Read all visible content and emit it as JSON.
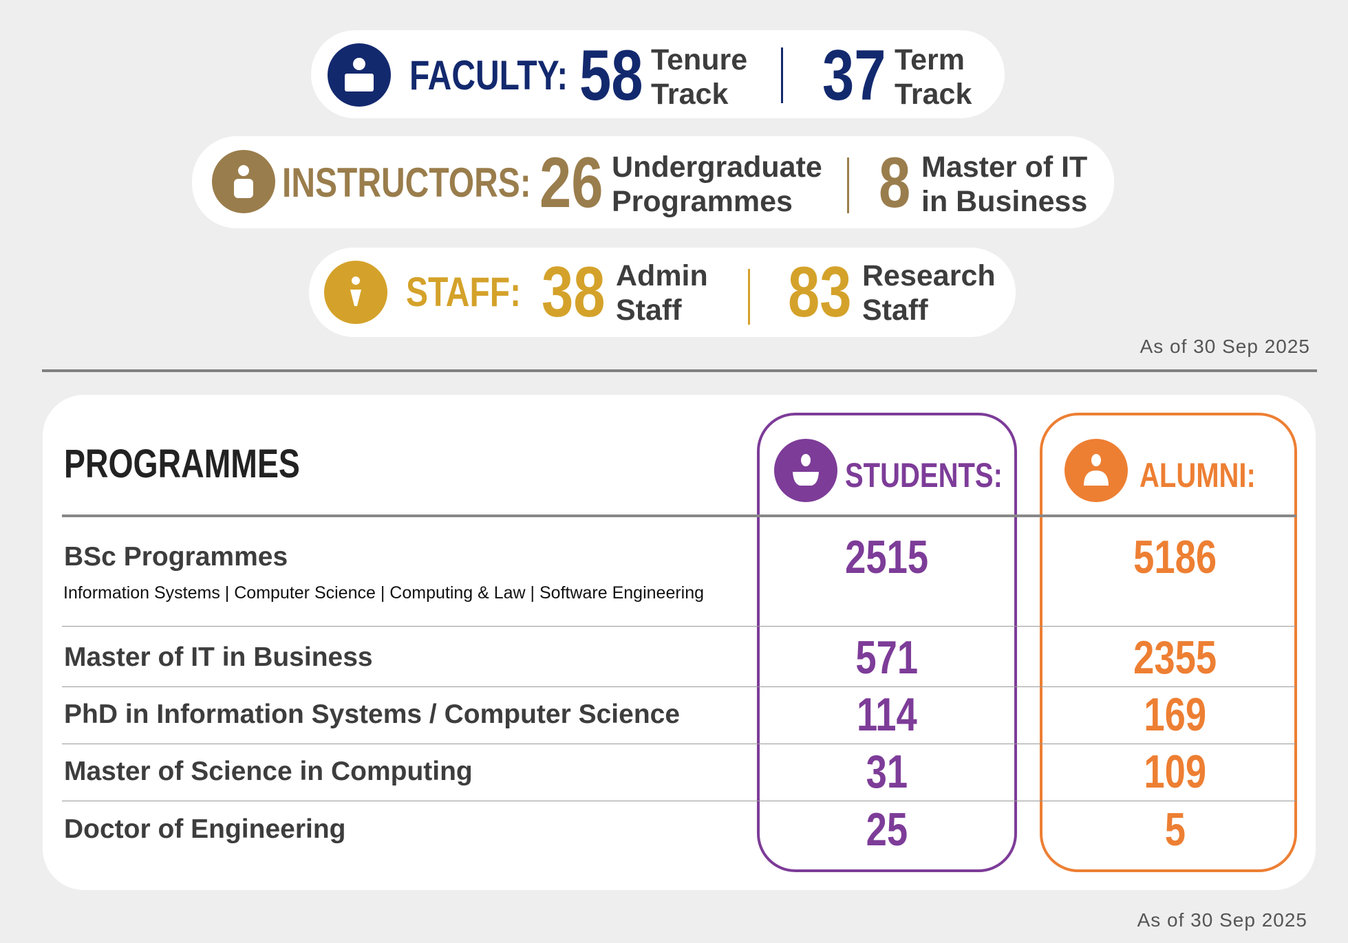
{
  "colors": {
    "faculty": "#13296e",
    "instructors": "#9a7d4c",
    "staff": "#d4a22a",
    "students": "#7d3c98",
    "alumni": "#ed7f33",
    "text": "#3d3d3d",
    "background": "#eeeeee"
  },
  "faculty": {
    "icon": "person-icon",
    "label": "FACULTY:",
    "a": {
      "value": "58",
      "line1": "Tenure",
      "line2": "Track"
    },
    "b": {
      "value": "37",
      "line1": "Term",
      "line2": "Track"
    }
  },
  "instructors": {
    "icon": "person-icon",
    "label": "INSTRUCTORS:",
    "a": {
      "value": "26",
      "line1": "Undergraduate",
      "line2": "Programmes"
    },
    "b": {
      "value": "8",
      "line1": "Master of IT",
      "line2": "in Business"
    }
  },
  "staff": {
    "icon": "person-icon",
    "label": "STAFF:",
    "a": {
      "value": "38",
      "line1": "Admin",
      "line2": "Staff"
    },
    "b": {
      "value": "83",
      "line1": "Research",
      "line2": "Staff"
    }
  },
  "as_of_top": "As of 30 Sep 2025",
  "programmes": {
    "title": "PROGRAMMES",
    "students_label": "STUDENTS:",
    "alumni_label": "ALUMNI:",
    "rows": [
      {
        "name": "BSc Programmes",
        "sub": "Information Systems | Computer Science | Computing & Law | Software Engineering",
        "students": "2515",
        "alumni": "5186"
      },
      {
        "name": "Master of IT in Business",
        "students": "571",
        "alumni": "2355"
      },
      {
        "name": "PhD in Information Systems / Computer Science",
        "students": "114",
        "alumni": "169"
      },
      {
        "name": "Master of Science in Computing",
        "students": "31",
        "alumni": "109"
      },
      {
        "name": "Doctor of Engineering",
        "students": "25",
        "alumni": "5"
      }
    ]
  },
  "as_of_bottom": "As of 30 Sep 2025"
}
